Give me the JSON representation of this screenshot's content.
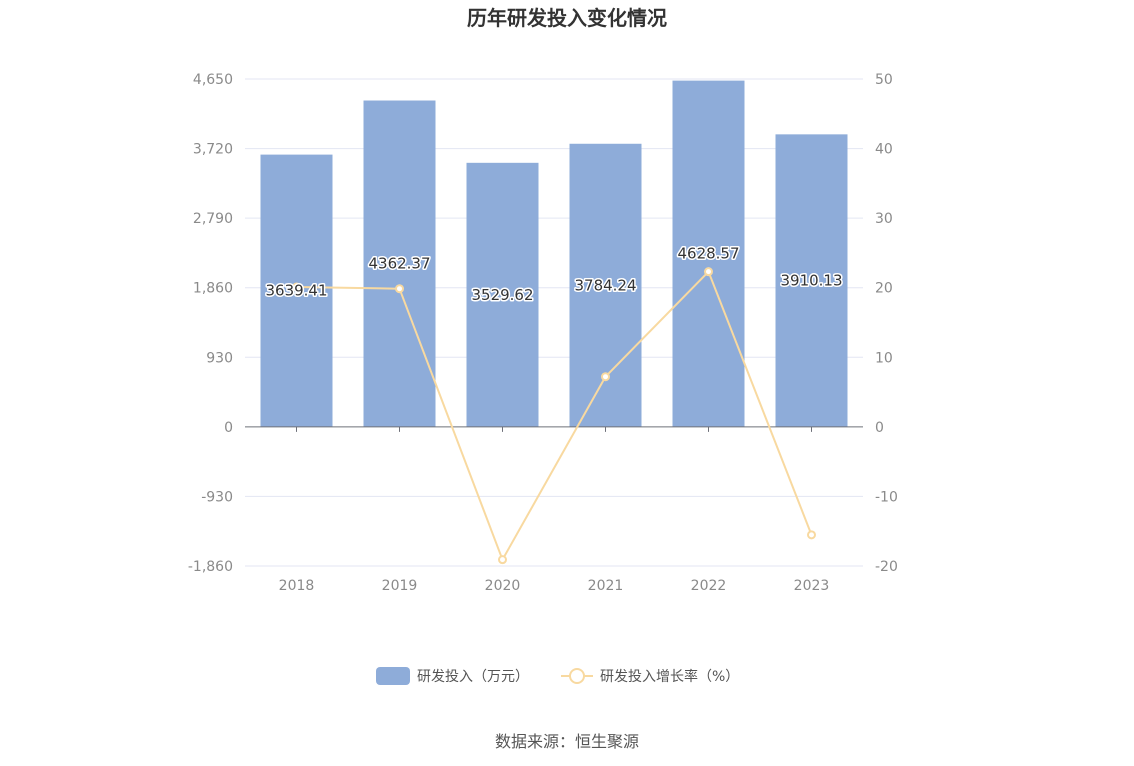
{
  "chart_data": {
    "type": "bar",
    "title": "历年研发投入变化情况",
    "categories": [
      "2018",
      "2019",
      "2020",
      "2021",
      "2022",
      "2023"
    ],
    "series": [
      {
        "name": "研发投入（万元）",
        "type": "bar",
        "axis": "left",
        "color": "#8eacd9",
        "values": [
          3639.41,
          4362.37,
          3529.62,
          3784.24,
          4628.57,
          3910.13
        ],
        "labels": [
          "3639.41",
          "4362.37",
          "3529.62",
          "3784.24",
          "4628.57",
          "3910.13"
        ]
      },
      {
        "name": "研发投入增长率（%）",
        "type": "line",
        "axis": "right",
        "color": "#f8d9a0",
        "values": [
          20.1,
          19.86,
          -19.09,
          7.21,
          22.31,
          -15.52
        ]
      }
    ],
    "y_left": {
      "ylim": [
        -1860,
        4650
      ],
      "ticks": [
        "4,650",
        "3,720",
        "2,790",
        "1,860",
        "930",
        "0",
        "-930",
        "-1,860"
      ],
      "tick_values": [
        4650,
        3720,
        2790,
        1860,
        930,
        0,
        -930,
        -1860
      ]
    },
    "y_right": {
      "ylim": [
        -20,
        50
      ],
      "ticks": [
        "50",
        "40",
        "30",
        "20",
        "10",
        "0",
        "-10",
        "-20"
      ],
      "tick_values": [
        50,
        40,
        30,
        20,
        10,
        0,
        -10,
        -20
      ]
    },
    "grid": true,
    "legend_position": "bottom-center",
    "source": "数据来源：恒生聚源"
  }
}
